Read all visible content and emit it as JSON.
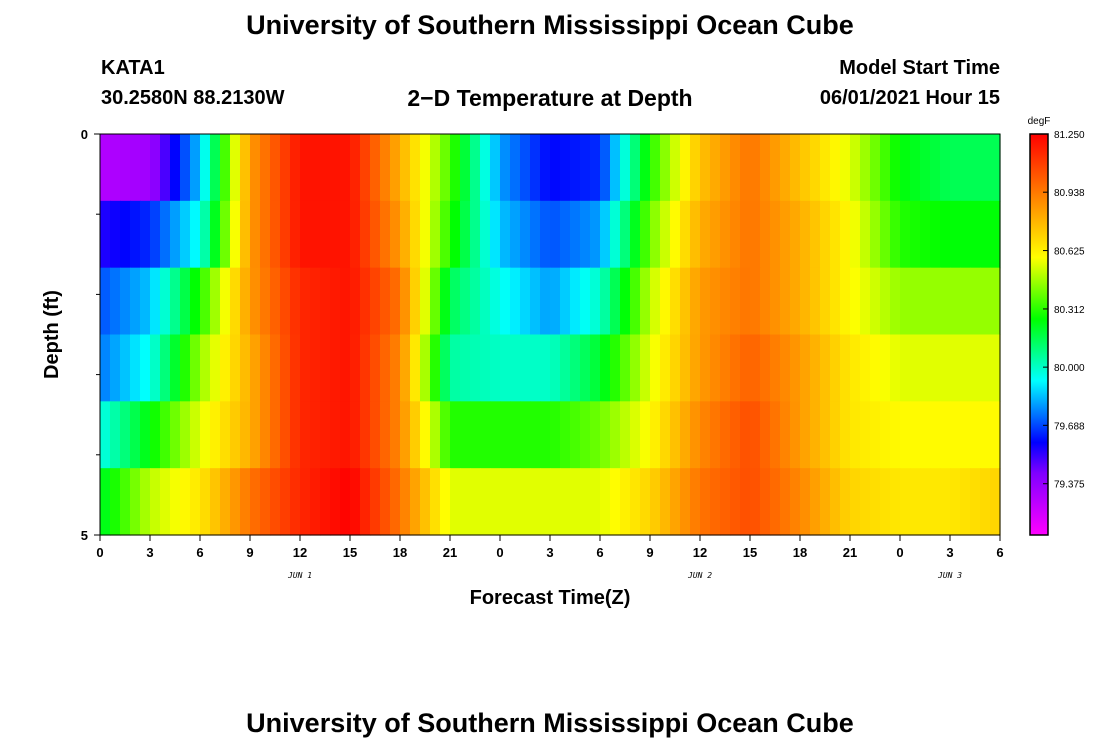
{
  "header": {
    "title": "University of Southern Mississippi Ocean Cube",
    "footer_title": "University of Southern Mississippi Ocean Cube",
    "station": "KATA1",
    "location": "30.2580N  88.2130W",
    "subtitle": "2−D Temperature at Depth",
    "model_start_label": "Model Start Time",
    "model_start_value": "06/01/2021 Hour 15"
  },
  "chart_data": {
    "type": "heatmap",
    "title": "2-D Temperature at Depth",
    "xlabel": "Forecast Time(Z)",
    "ylabel": "Depth (ft)",
    "x_tick_labels": [
      "0",
      "3",
      "6",
      "9",
      "12",
      "15",
      "18",
      "21",
      "0",
      "3",
      "6",
      "9",
      "12",
      "15",
      "18",
      "21",
      "0",
      "3",
      "6"
    ],
    "x_range_hours": [
      0,
      54
    ],
    "date_labels": [
      {
        "text": "JUN 1",
        "hour": 12
      },
      {
        "text": "JUN 2",
        "hour": 36
      },
      {
        "text": "JUN 3",
        "hour": 51
      }
    ],
    "y_tick_labels": [
      "0",
      "5"
    ],
    "ylim": [
      0,
      5
    ],
    "y_minor_ticks": [
      1,
      2,
      3,
      4
    ],
    "depth_layers": [
      0.25,
      1,
      2,
      3,
      4,
      4.75
    ],
    "hours": [
      0,
      3,
      6,
      9,
      12,
      15,
      18,
      21,
      24,
      27,
      30,
      33,
      36,
      39,
      42,
      45,
      48,
      51,
      54
    ],
    "values": [
      [
        79.3,
        79.35,
        79.85,
        80.85,
        81.2,
        81.2,
        80.8,
        80.35,
        79.8,
        79.6,
        79.65,
        80.3,
        80.75,
        80.95,
        80.75,
        80.55,
        80.25,
        80.15,
        80.15
      ],
      [
        79.55,
        79.65,
        79.95,
        80.85,
        81.2,
        81.2,
        80.85,
        80.3,
        79.85,
        79.7,
        79.8,
        80.4,
        80.8,
        80.95,
        80.8,
        80.6,
        80.3,
        80.25,
        80.25
      ],
      [
        79.7,
        79.85,
        80.3,
        80.85,
        81.15,
        81.2,
        80.95,
        80.15,
        79.95,
        79.8,
        80.0,
        80.5,
        80.85,
        80.95,
        80.8,
        80.6,
        80.45,
        80.45,
        80.45
      ],
      [
        79.75,
        79.95,
        80.45,
        80.8,
        81.15,
        81.2,
        80.9,
        80.05,
        80.0,
        80.0,
        80.2,
        80.55,
        80.85,
        81.0,
        80.85,
        80.65,
        80.55,
        80.55,
        80.55
      ],
      [
        79.95,
        80.25,
        80.55,
        80.8,
        81.15,
        81.2,
        80.9,
        80.3,
        80.3,
        80.3,
        80.4,
        80.6,
        80.9,
        81.05,
        80.85,
        80.65,
        80.6,
        80.6,
        80.6
      ],
      [
        80.2,
        80.5,
        80.65,
        80.95,
        81.15,
        81.25,
        80.95,
        80.55,
        80.55,
        80.55,
        80.55,
        80.7,
        80.95,
        81.05,
        80.9,
        80.7,
        80.65,
        80.65,
        80.7
      ]
    ],
    "colorbar": {
      "unit": "degF",
      "min": 79.1,
      "max": 81.25,
      "tick_labels": [
        "81.250",
        "80.938",
        "80.625",
        "80.312",
        "80.000",
        "79.688",
        "79.375"
      ],
      "colors": [
        "#ff00ff",
        "#c000ff",
        "#8000ff",
        "#0000ff",
        "#0080ff",
        "#00ffff",
        "#00ff80",
        "#00ff00",
        "#80ff00",
        "#ffff00",
        "#ffc000",
        "#ff8000",
        "#ff4000",
        "#ff0000"
      ]
    }
  }
}
